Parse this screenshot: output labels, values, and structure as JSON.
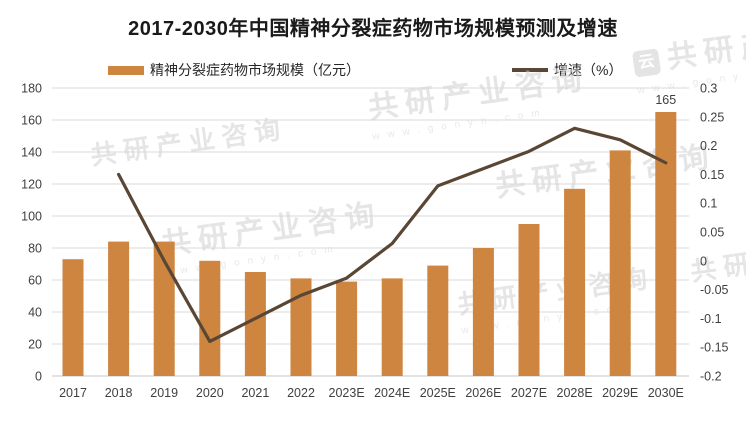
{
  "title": "2017-2030年中国精神分裂症药物市场规模预测及增速",
  "legend": [
    {
      "label": "精神分裂症药物市场规模（亿元）",
      "marker": "bar-swatch"
    },
    {
      "label": "增速（%）",
      "marker": "line-swatch"
    }
  ],
  "chart_data": {
    "type": "bar+line combo",
    "title": "2017-2030年中国精神分裂症药物市场规模预测及增速",
    "categories": [
      "2017",
      "2018",
      "2019",
      "2020",
      "2021",
      "2022",
      "2023E",
      "2024E",
      "2025E",
      "2026E",
      "2027E",
      "2028E",
      "2029E",
      "2030E"
    ],
    "series": [
      {
        "name": "精神分裂症药物市场规模（亿元）",
        "type": "bar",
        "axis": "left",
        "color": "#CE8540",
        "values": [
          73,
          84,
          84,
          72,
          65,
          61,
          59,
          61,
          69,
          80,
          95,
          117,
          141,
          165
        ]
      },
      {
        "name": "增速（%）",
        "type": "line",
        "axis": "right",
        "color": "#5A4634",
        "values": [
          null,
          0.15,
          0.0,
          -0.14,
          -0.1,
          -0.06,
          -0.03,
          0.03,
          0.13,
          0.16,
          0.19,
          0.23,
          0.21,
          0.17
        ]
      }
    ],
    "left_axis": {
      "min": 0,
      "max": 180,
      "step": 20,
      "ticks": [
        "180",
        "160",
        "140",
        "120",
        "100",
        "80",
        "60",
        "40",
        "20",
        "0"
      ]
    },
    "right_axis": {
      "min": -0.2,
      "max": 0.3,
      "step": 0.05,
      "ticks": [
        "0.3",
        "0.25",
        "0.2",
        "0.15",
        "0.1",
        "0.05",
        "0",
        "-0.05",
        "-0.1",
        "-0.15",
        "-0.2"
      ]
    },
    "data_labels": [
      {
        "category": "2030E",
        "text": "165"
      }
    ],
    "grid": true,
    "legend_position": "top"
  },
  "watermark": {
    "brand": "共研产业咨询",
    "url": "www.gonyn.com",
    "logo_glyph": "云"
  },
  "colors": {
    "bar": "#CE8540",
    "line": "#5A4634",
    "grid": "#D9D9D9",
    "baseline": "#C6C6C6",
    "axis_text": "#404040",
    "title_text": "#1A1A1A",
    "watermark": "#D0D0D0"
  }
}
